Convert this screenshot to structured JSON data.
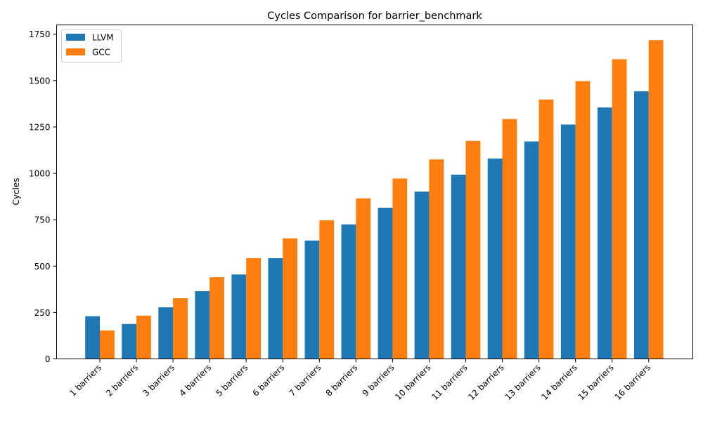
{
  "chart_data": {
    "type": "bar",
    "title": "Cycles Comparison for barrier_benchmark",
    "xlabel": "",
    "ylabel": "Cycles",
    "ylim": [
      0,
      1800
    ],
    "yticks": [
      0,
      250,
      500,
      750,
      1000,
      1250,
      1500,
      1750
    ],
    "ytick_labels": [
      "0",
      "250",
      "500",
      "750",
      "1000",
      "1250",
      "1500",
      "1750"
    ],
    "categories": [
      "1 barriers",
      "2 barriers",
      "3 barriers",
      "4 barriers",
      "5 barriers",
      "6 barriers",
      "7 barriers",
      "8 barriers",
      "9 barriers",
      "10 barriers",
      "11 barriers",
      "12 barriers",
      "13 barriers",
      "14 barriers",
      "15 barriers",
      "16 barriers"
    ],
    "series": [
      {
        "name": "LLVM",
        "color": "#1f77b4",
        "values": [
          230,
          188,
          278,
          365,
          455,
          543,
          638,
          725,
          815,
          902,
          993,
          1080,
          1172,
          1263,
          1355,
          1442
        ]
      },
      {
        "name": "GCC",
        "color": "#ff7f0e",
        "values": [
          153,
          233,
          327,
          440,
          543,
          650,
          747,
          865,
          972,
          1075,
          1175,
          1293,
          1398,
          1497,
          1615,
          1718
        ]
      }
    ],
    "legend_position": "top-left",
    "grid": false
  }
}
